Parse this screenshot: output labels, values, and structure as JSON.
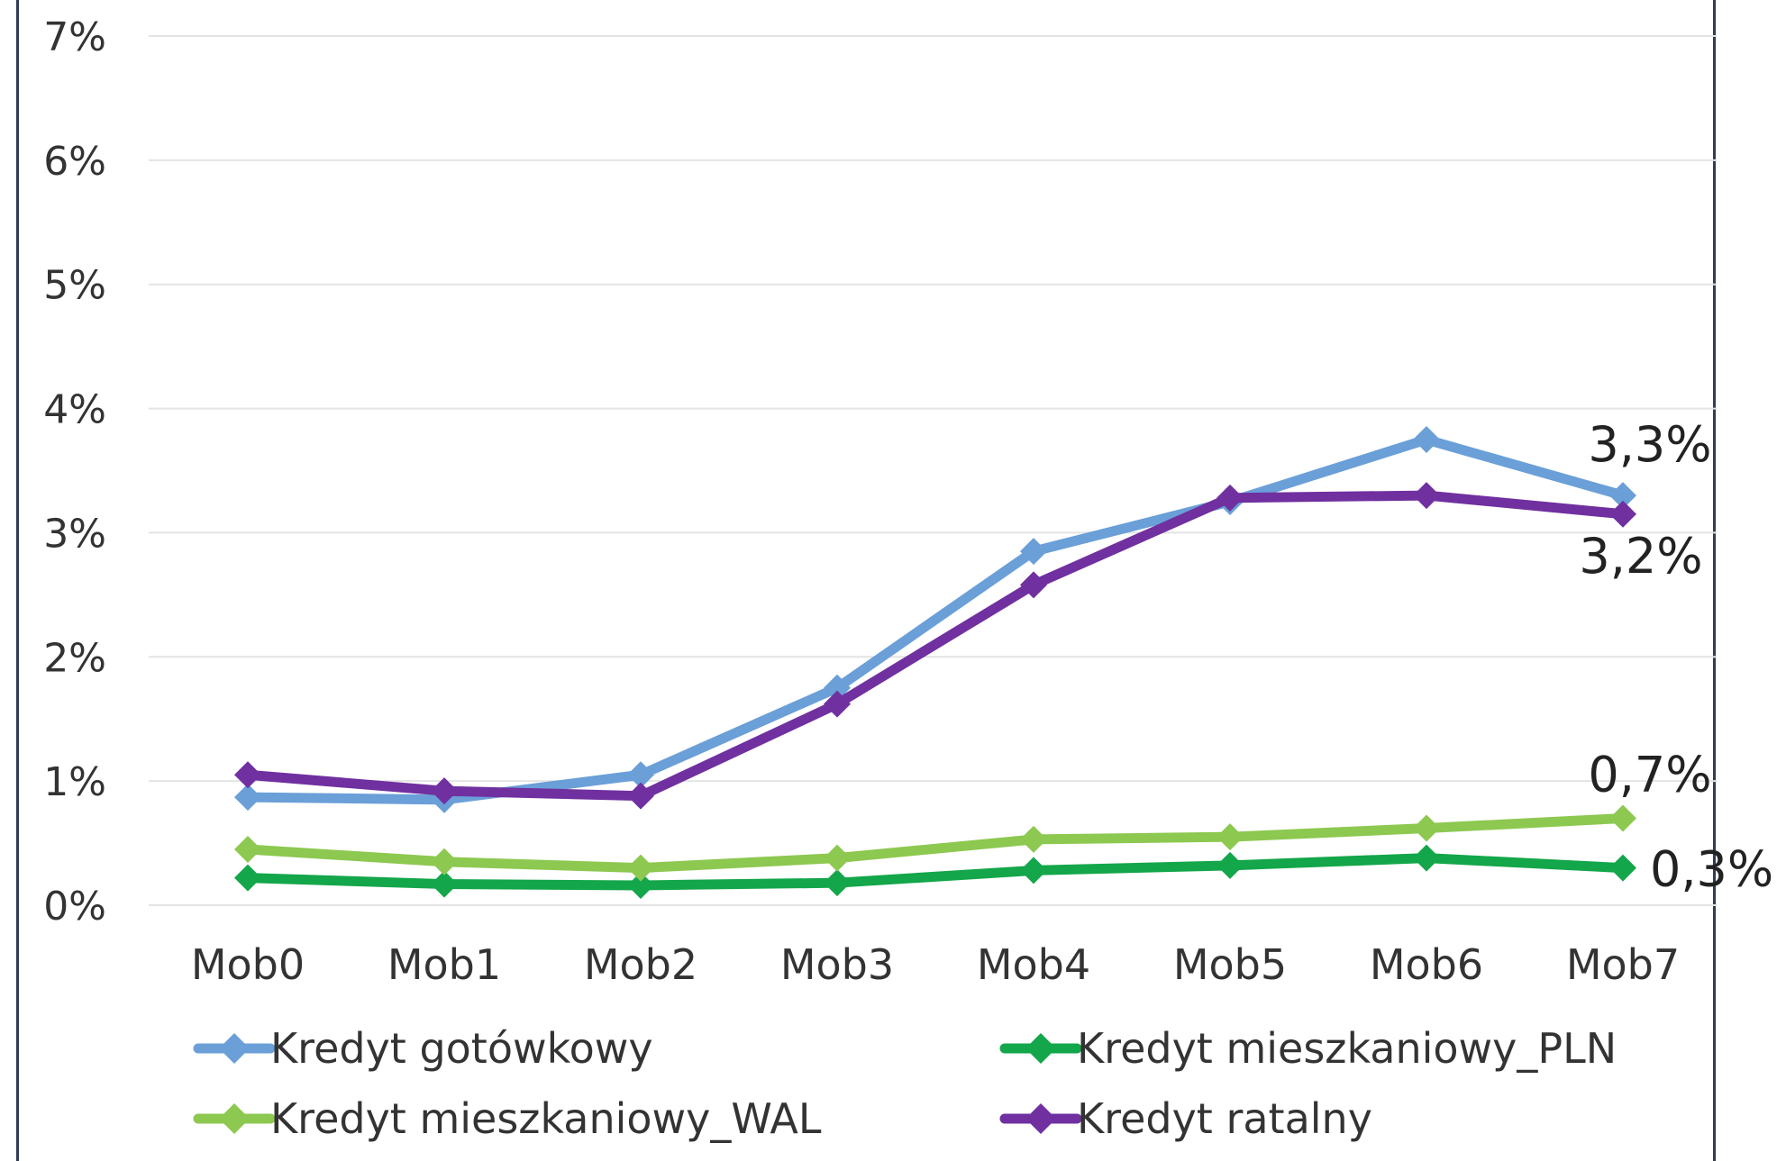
{
  "chart_data": {
    "type": "line",
    "categories": [
      "Mob0",
      "Mob1",
      "Mob2",
      "Mob3",
      "Mob4",
      "Mob5",
      "Mob6",
      "Mob7"
    ],
    "y_ticks": [
      "0%",
      "1%",
      "2%",
      "3%",
      "4%",
      "5%",
      "6%",
      "7%"
    ],
    "ylim": [
      0,
      7
    ],
    "grid": true,
    "legend_position": "bottom",
    "series": [
      {
        "name": "Kredyt gotówkowy",
        "color": "#6a9fd8",
        "values": [
          0.87,
          0.85,
          1.05,
          1.75,
          2.85,
          3.25,
          3.75,
          3.3
        ]
      },
      {
        "name": "Kredyt mieszkaniowy_PLN",
        "color": "#13a64a",
        "values": [
          0.22,
          0.17,
          0.16,
          0.18,
          0.28,
          0.32,
          0.38,
          0.3
        ]
      },
      {
        "name": "Kredyt mieszkaniowy_WAL",
        "color": "#8dc850",
        "values": [
          0.45,
          0.35,
          0.3,
          0.38,
          0.53,
          0.55,
          0.62,
          0.7
        ]
      },
      {
        "name": "Kredyt ratalny",
        "color": "#7030a0",
        "values": [
          1.05,
          0.92,
          0.88,
          1.62,
          2.58,
          3.28,
          3.3,
          3.15
        ]
      }
    ],
    "annotations": [
      {
        "text": "3,3%",
        "series": 0
      },
      {
        "text": "3,2%",
        "series": 3
      },
      {
        "text": "0,7%",
        "series": 2
      },
      {
        "text": "0,3%",
        "series": 1
      }
    ]
  }
}
